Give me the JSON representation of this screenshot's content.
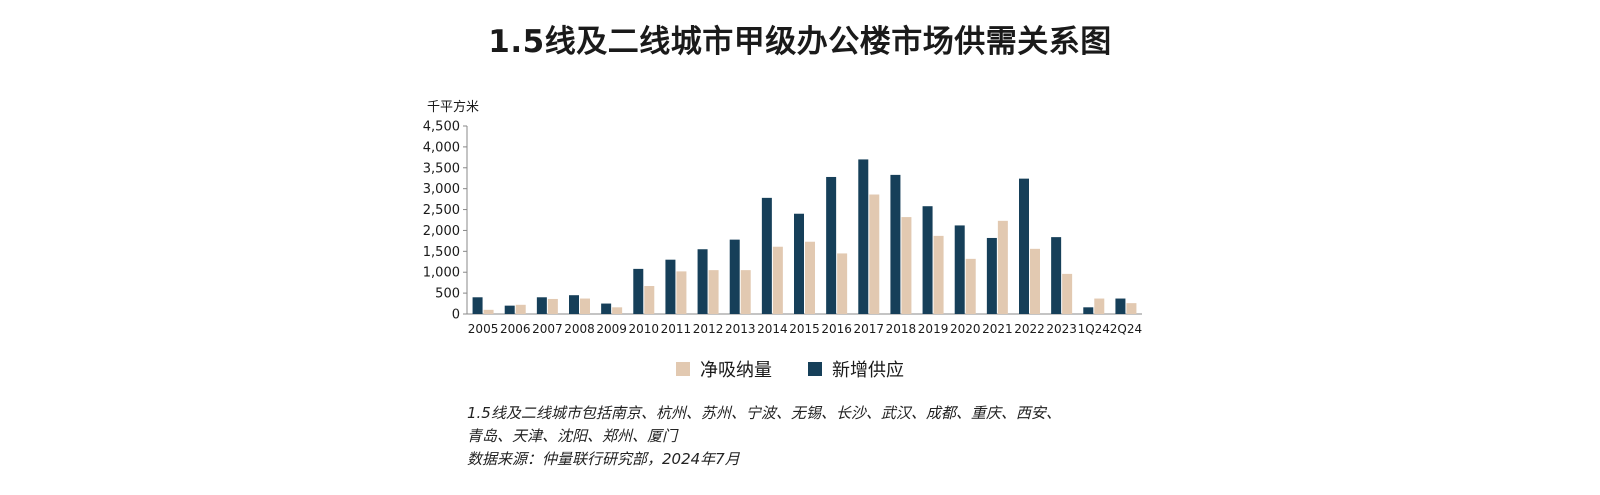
{
  "title": "1.5线及二线城市甲级办公楼市场供需关系图",
  "colors": {
    "absorption": "#e2c9b1",
    "supply": "#163f59"
  },
  "chart_data": {
    "type": "bar",
    "ylabel": "千平方米",
    "ylim": [
      0,
      4500
    ],
    "yticks": [
      "4,500",
      "4,000",
      "3,500",
      "3,000",
      "2,500",
      "2,000",
      "1,500",
      "1,000",
      "500",
      "0"
    ],
    "categories": [
      "2005",
      "2006",
      "2007",
      "2008",
      "2009",
      "2010",
      "2011",
      "2012",
      "2013",
      "2014",
      "2015",
      "2016",
      "2017",
      "2018",
      "2019",
      "2020",
      "2021",
      "2022",
      "2023",
      "1Q24",
      "2Q24"
    ],
    "series": [
      {
        "name": "新增供应",
        "color": "#163f59",
        "values": [
          400,
          200,
          400,
          450,
          250,
          1080,
          1300,
          1550,
          1780,
          2780,
          2400,
          3280,
          3700,
          3330,
          2580,
          2120,
          1820,
          3240,
          1840,
          160,
          370
        ]
      },
      {
        "name": "净吸纳量",
        "color": "#e2c9b1",
        "values": [
          100,
          220,
          360,
          370,
          160,
          670,
          1020,
          1050,
          1050,
          1610,
          1730,
          1450,
          2860,
          2320,
          1870,
          1320,
          2230,
          1560,
          960,
          370,
          260
        ]
      }
    ],
    "legend": [
      "净吸纳量",
      "新增供应"
    ]
  },
  "notes": [
    "1.5线及二线城市包括南京、杭州、苏州、宁波、无锡、长沙、武汉、成都、重庆、西安、",
    "青岛、天津、沈阳、郑州、厦门",
    "数据来源：仲量联行研究部，2024年7月"
  ]
}
